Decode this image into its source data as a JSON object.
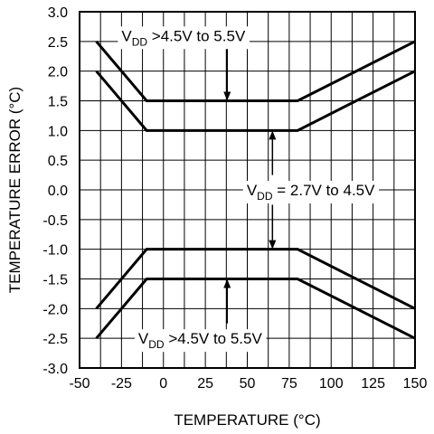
{
  "chart_data": {
    "type": "line",
    "xlabel": "TEMPERATURE (°C)",
    "ylabel": "TEMPERATURE ERROR (°C)",
    "xlim": [
      -50,
      150
    ],
    "ylim": [
      -3.0,
      3.0
    ],
    "x_ticks": [
      "-50",
      "-25",
      "0",
      "25",
      "50",
      "75",
      "100",
      "125",
      "150"
    ],
    "y_ticks": [
      "3.0",
      "2.5",
      "2.0",
      "1.5",
      "1.0",
      "0.5",
      "0.0",
      "-0.5",
      "-1.0",
      "-1.5",
      "-2.0",
      "-2.5",
      "-3.0"
    ],
    "x_tick_values": [
      -50,
      -25,
      0,
      25,
      50,
      75,
      100,
      125,
      150
    ],
    "y_tick_values": [
      3.0,
      2.5,
      2.0,
      1.5,
      1.0,
      0.5,
      0.0,
      -0.5,
      -1.0,
      -1.5,
      -2.0,
      -2.5,
      -3.0
    ],
    "x_minor_step": 12.5,
    "grid": true,
    "line_color": "#000000",
    "series": [
      {
        "x": [
          -40,
          -10,
          80,
          150
        ],
        "y": [
          2.5,
          1.5,
          1.5,
          2.5
        ]
      },
      {
        "x": [
          -40,
          -10,
          80,
          150
        ],
        "y": [
          2.0,
          1.0,
          1.0,
          2.0
        ]
      },
      {
        "x": [
          -40,
          -10,
          80,
          150
        ],
        "y": [
          -2.0,
          -1.0,
          -1.0,
          -2.0
        ]
      },
      {
        "x": [
          -40,
          -10,
          80,
          150
        ],
        "y": [
          -2.5,
          -1.5,
          -1.5,
          -2.5
        ]
      }
    ],
    "annotations": [
      {
        "main": "V",
        "sub": "DD",
        "rest": " >4.5V to 5.5V",
        "x": -25,
        "y": 2.6,
        "anchor": "start",
        "arrow_from": [
          38,
          2.45
        ],
        "arrow_to": [
          38,
          1.5
        ]
      },
      {
        "main": "V",
        "sub": "DD",
        "rest": " = 2.7V to 4.5V",
        "x": 126,
        "y": 0.0,
        "anchor": "end",
        "arrow_from": [
          65,
          0.25
        ],
        "arrow_to": [
          65,
          1.0
        ]
      },
      {
        "main": "V",
        "sub": "DD",
        "rest": " = 2.7V to 4.5V",
        "x": null,
        "y": null,
        "anchor": "none",
        "arrow_from": [
          65,
          -0.25
        ],
        "arrow_to": [
          65,
          -1.0
        ]
      },
      {
        "main": "V",
        "sub": "DD",
        "rest": " >4.5V to 5.5V",
        "x": -15,
        "y": -2.5,
        "anchor": "start",
        "arrow_from": [
          38,
          -2.25
        ],
        "arrow_to": [
          38,
          -1.5
        ]
      }
    ]
  }
}
